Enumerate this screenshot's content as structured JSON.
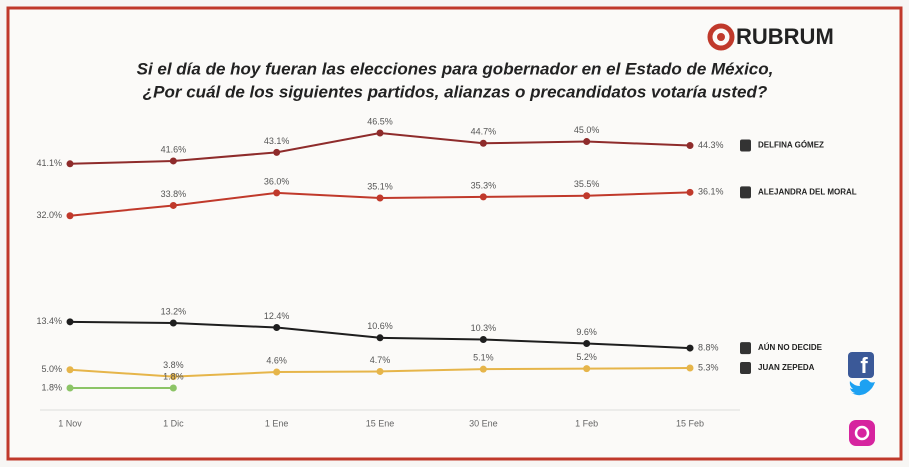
{
  "brand": "RUBRUM",
  "chart_data": {
    "type": "line",
    "title": "Si el día de hoy fueran las elecciones para gobernador en el Estado de México,",
    "subtitle": "¿Por cuál de los siguientes partidos, alianzas o precandidatos votaría usted?",
    "categories": [
      "1 Nov",
      "1 Dic",
      "1 Ene",
      "15 Ene",
      "30 Ene",
      "1 Feb",
      "15 Feb"
    ],
    "series": [
      {
        "name": "DELFINA GÓMEZ",
        "color": "#8e2b2b",
        "values": [
          41.1,
          41.6,
          43.1,
          46.5,
          44.7,
          45.0,
          44.3
        ],
        "value_labels": [
          "41.1%",
          "41.6%",
          "43.1%",
          "46.5%",
          "44.7%",
          "45.0%",
          "44.3%"
        ]
      },
      {
        "name": "ALEJANDRA DEL MORAL",
        "color": "#c0392b",
        "values": [
          32.0,
          33.8,
          36.0,
          35.1,
          35.3,
          35.5,
          36.1
        ],
        "value_labels": [
          "32.0%",
          "33.8%",
          "36.0%",
          "35.1%",
          "35.3%",
          "35.5%",
          "36.1%"
        ]
      },
      {
        "name": "AÚN NO DECIDE",
        "color": "#1e1e1e",
        "values": [
          13.4,
          13.2,
          12.4,
          10.6,
          10.3,
          9.6,
          8.8
        ],
        "value_labels": [
          "13.4%",
          "13.2%",
          "12.4%",
          "10.6%",
          "10.3%",
          "9.6%",
          "8.8%"
        ]
      },
      {
        "name": "JUAN ZEPEDA",
        "color": "#e6b54a",
        "values": [
          5.0,
          3.8,
          4.6,
          4.7,
          5.1,
          5.2,
          5.3
        ],
        "value_labels": [
          "5.0%",
          "3.8%",
          "4.6%",
          "4.7%",
          "5.1%",
          "5.2%",
          "5.3%"
        ]
      },
      {
        "color": "#8cc466",
        "values": [
          1.8,
          1.8,
          null,
          null,
          null,
          null,
          null
        ],
        "value_labels": [
          "1.8%",
          "1.8%",
          null,
          null,
          null,
          null,
          null
        ]
      }
    ]
  }
}
